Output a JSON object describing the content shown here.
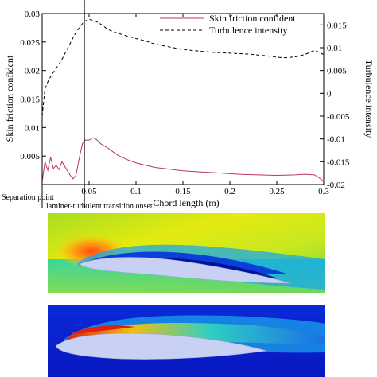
{
  "chart_data": {
    "type": "line",
    "xlabel": "Chord length (m)",
    "ylabel_left": "Skin friction confident",
    "ylabel_right": "Turbulence intensity",
    "xlim": [
      0,
      0.3
    ],
    "ylim_left": [
      0,
      0.03
    ],
    "ylim_right": [
      -0.02,
      0.0175
    ],
    "x_ticks": [
      0.05,
      0.1,
      0.15,
      0.2,
      0.25,
      0.3
    ],
    "x_tick_labels": [
      "0.05",
      "0.1",
      "0.15",
      "0.2",
      "0.25",
      "0.3"
    ],
    "y_left_ticks": [
      0.005,
      0.01,
      0.015,
      0.02,
      0.025,
      0.03
    ],
    "y_left_tick_labels": [
      "0.005",
      "0.01",
      "0.015",
      "0.02",
      "0.025",
      "0.03"
    ],
    "y_right_ticks": [
      -0.02,
      -0.015,
      -0.01,
      -0.005,
      0,
      0.005,
      0.01,
      0.015
    ],
    "y_right_tick_labels": [
      "-0.02",
      "-0.015",
      "-0.01",
      "-0.005",
      "0",
      "0.005",
      "0.01",
      "0.015"
    ],
    "legend_position": "top-right",
    "series": [
      {
        "name": "Skin friction confident",
        "axis": "left",
        "color": "#c0306a",
        "style": "solid",
        "x": [
          0.0,
          0.003,
          0.006,
          0.009,
          0.012,
          0.015,
          0.018,
          0.021,
          0.024,
          0.027,
          0.03,
          0.033,
          0.036,
          0.04,
          0.043,
          0.046,
          0.05,
          0.054,
          0.058,
          0.062,
          0.066,
          0.07,
          0.075,
          0.08,
          0.09,
          0.1,
          0.11,
          0.12,
          0.13,
          0.14,
          0.15,
          0.17,
          0.19,
          0.21,
          0.23,
          0.25,
          0.27,
          0.28,
          0.29,
          0.295,
          0.3
        ],
        "y": [
          0.0005,
          0.004,
          0.0025,
          0.0048,
          0.0028,
          0.0034,
          0.0026,
          0.004,
          0.0032,
          0.0024,
          0.0016,
          0.001,
          0.0016,
          0.005,
          0.0072,
          0.0078,
          0.0078,
          0.0082,
          0.0079,
          0.0072,
          0.0068,
          0.0064,
          0.0058,
          0.0052,
          0.0044,
          0.0038,
          0.0034,
          0.003,
          0.0028,
          0.0026,
          0.0024,
          0.0022,
          0.002,
          0.0018,
          0.0017,
          0.0016,
          0.0017,
          0.0018,
          0.0017,
          0.0012,
          0.0005
        ]
      },
      {
        "name": "Turbulence intensity",
        "axis": "right",
        "color": "#000000",
        "style": "dashed",
        "x": [
          0.0,
          0.003,
          0.006,
          0.01,
          0.015,
          0.02,
          0.025,
          0.03,
          0.035,
          0.04,
          0.045,
          0.05,
          0.055,
          0.06,
          0.065,
          0.07,
          0.08,
          0.09,
          0.1,
          0.11,
          0.12,
          0.13,
          0.14,
          0.15,
          0.16,
          0.18,
          0.2,
          0.22,
          0.24,
          0.25,
          0.26,
          0.27,
          0.28,
          0.29,
          0.295,
          0.3
        ],
        "y": [
          -0.005,
          0.001,
          0.0025,
          0.004,
          0.0055,
          0.007,
          0.009,
          0.011,
          0.013,
          0.0145,
          0.0158,
          0.0162,
          0.016,
          0.0155,
          0.0148,
          0.014,
          0.0132,
          0.0126,
          0.012,
          0.0115,
          0.0108,
          0.0104,
          0.01,
          0.0096,
          0.0094,
          0.009,
          0.0088,
          0.0086,
          0.0082,
          0.0079,
          0.0078,
          0.008,
          0.0085,
          0.0094,
          0.009,
          0.0085
        ]
      }
    ],
    "annotations": [
      {
        "text": "Separation point",
        "x": 0.0
      },
      {
        "text": "laminer-turbulent transition onset",
        "x": 0.045
      }
    ]
  },
  "colors": {
    "frame": "#000000",
    "separation_line": "#000000",
    "airfoil": "#c8d0f4"
  }
}
